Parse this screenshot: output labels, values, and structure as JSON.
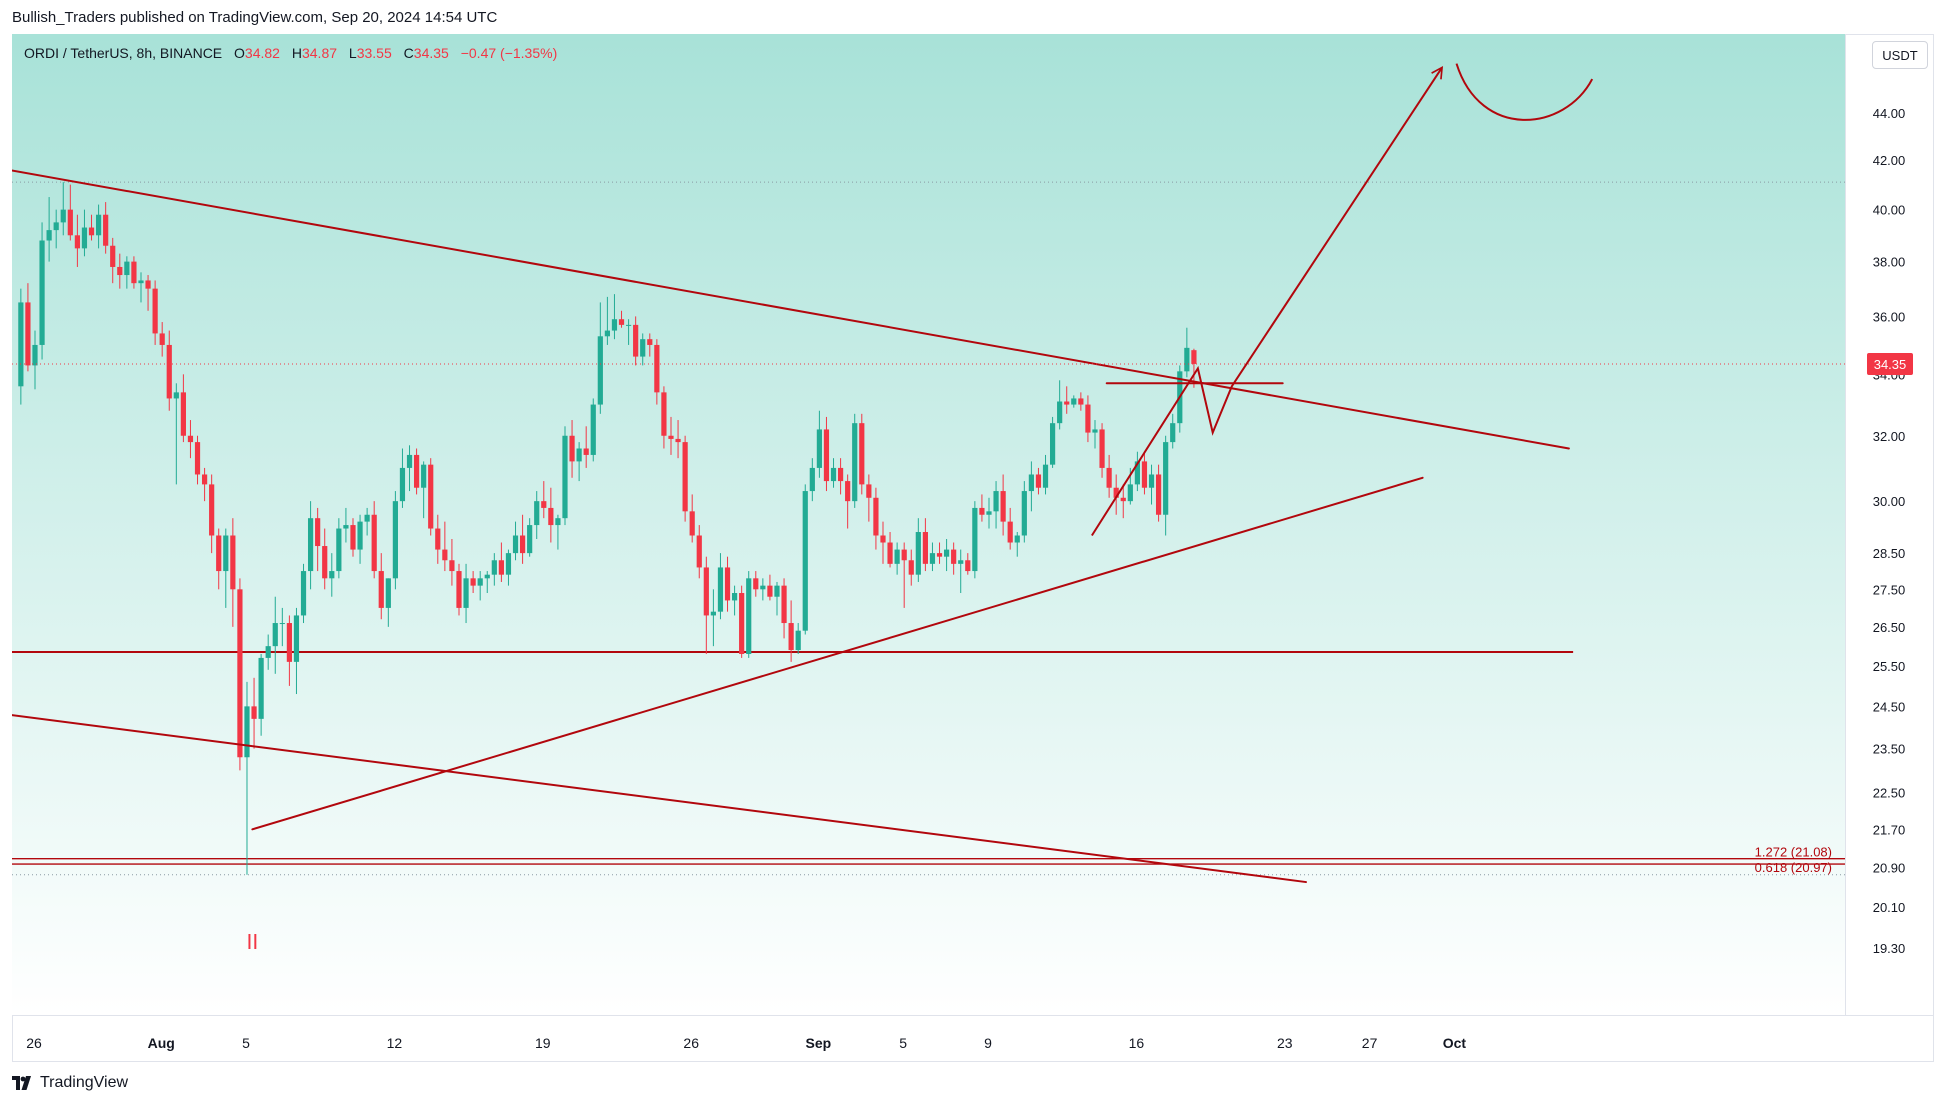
{
  "header": {
    "publisher_line": "Bullish_Traders published on TradingView.com, Sep 20, 2024 14:54 UTC"
  },
  "legend": {
    "symbol": "ORDI / TetherUS, 8h, BINANCE",
    "open_label": "O",
    "open": "34.82",
    "high_label": "H",
    "high": "34.87",
    "low_label": "L",
    "low": "33.55",
    "close_label": "C",
    "close": "34.35",
    "change": "−0.47 (−1.35%)"
  },
  "price_unit": "USDT",
  "footer": {
    "brand": "TradingView"
  },
  "colors": {
    "up": "#22ab94",
    "down": "#f23645",
    "drawing": "#b2070d",
    "bg_top": "#a8e2d8",
    "bg_bottom": "#ffffff",
    "last_price_bg": "#f23645"
  },
  "chart_data": {
    "type": "candlestick",
    "symbol": "ORDI/USDT",
    "interval": "8h",
    "exchange": "BINANCE",
    "y_axis": {
      "scale": "log",
      "range": [
        18.4,
        47.5
      ],
      "tick_labels": [
        "44.00",
        "42.00",
        "40.00",
        "38.00",
        "36.00",
        "34.00",
        "32.00",
        "30.00",
        "28.50",
        "27.50",
        "26.50",
        "25.50",
        "24.50",
        "23.50",
        "22.50",
        "21.70",
        "20.90",
        "20.10",
        "19.30"
      ]
    },
    "x_axis": {
      "range_days": [
        0,
        67
      ],
      "ticks": [
        {
          "day": 0,
          "label": "26"
        },
        {
          "day": 6,
          "label": "Aug"
        },
        {
          "day": 10,
          "label": "5"
        },
        {
          "day": 17,
          "label": "12"
        },
        {
          "day": 24,
          "label": "19"
        },
        {
          "day": 31,
          "label": "26"
        },
        {
          "day": 37,
          "label": "Sep"
        },
        {
          "day": 41,
          "label": "5"
        },
        {
          "day": 45,
          "label": "9"
        },
        {
          "day": 52,
          "label": "16"
        },
        {
          "day": 59,
          "label": "23"
        },
        {
          "day": 63,
          "label": "27"
        },
        {
          "day": 67,
          "label": "Oct"
        }
      ]
    },
    "last_price": {
      "value": 34.35,
      "label": "34.35"
    },
    "fib_labels": [
      {
        "text": "1.272 (21.08)",
        "price": 21.08
      },
      {
        "text": "0.618 (20.97)",
        "price": 20.97
      }
    ],
    "horizontal_levels": [
      {
        "price": 41.1,
        "style": "dotted"
      },
      {
        "price": 20.75,
        "style": "dotted"
      },
      {
        "price": 25.85,
        "style": "solid",
        "from_day": -1.2,
        "to_day": 72.6
      }
    ],
    "trendlines": [
      {
        "name": "descending-resistance",
        "from": [
          -1.2,
          41.6
        ],
        "to": [
          72.4,
          31.6
        ]
      },
      {
        "name": "lower-channel",
        "from": [
          -1.2,
          24.3
        ],
        "to": [
          60.0,
          20.6
        ]
      },
      {
        "name": "rising-support",
        "from": [
          10.3,
          21.7
        ],
        "to": [
          65.5,
          30.7
        ]
      },
      {
        "name": "breakout-retest-level",
        "from": [
          50.6,
          33.7
        ],
        "to": [
          58.9,
          33.7
        ]
      }
    ],
    "zigzag": [
      [
        49.9,
        29.0
      ],
      [
        54.9,
        34.2
      ],
      [
        55.6,
        32.1
      ],
      [
        56.5,
        33.6
      ],
      [
        66.4,
        46.0
      ]
    ],
    "target_arc": {
      "from": [
        67.1,
        46.2
      ],
      "dip": [
        70.3,
        43.7
      ],
      "to": [
        73.5,
        45.5
      ]
    },
    "marker_label": "II",
    "candles": [
      {
        "o": 33.6,
        "h": 37.0,
        "l": 33.0,
        "c": 36.5
      },
      {
        "o": 36.5,
        "h": 37.2,
        "l": 34.1,
        "c": 34.3
      },
      {
        "o": 34.3,
        "h": 35.5,
        "l": 33.5,
        "c": 35.0
      },
      {
        "o": 35.0,
        "h": 39.5,
        "l": 34.5,
        "c": 38.8
      },
      {
        "o": 38.8,
        "h": 40.5,
        "l": 38.0,
        "c": 39.2
      },
      {
        "o": 39.2,
        "h": 40.0,
        "l": 38.5,
        "c": 39.5
      },
      {
        "o": 39.5,
        "h": 41.1,
        "l": 39.0,
        "c": 40.0
      },
      {
        "o": 40.0,
        "h": 41.0,
        "l": 38.8,
        "c": 39.0
      },
      {
        "o": 39.0,
        "h": 39.8,
        "l": 37.8,
        "c": 38.5
      },
      {
        "o": 38.5,
        "h": 40.0,
        "l": 38.2,
        "c": 39.3
      },
      {
        "o": 39.3,
        "h": 39.8,
        "l": 38.8,
        "c": 39.0
      },
      {
        "o": 39.0,
        "h": 40.2,
        "l": 38.5,
        "c": 39.8
      },
      {
        "o": 39.8,
        "h": 40.3,
        "l": 38.3,
        "c": 38.6
      },
      {
        "o": 38.6,
        "h": 38.9,
        "l": 37.2,
        "c": 37.8
      },
      {
        "o": 37.8,
        "h": 38.3,
        "l": 37.0,
        "c": 37.5
      },
      {
        "o": 37.5,
        "h": 38.2,
        "l": 37.0,
        "c": 38.0
      },
      {
        "o": 38.0,
        "h": 38.2,
        "l": 37.0,
        "c": 37.2
      },
      {
        "o": 37.2,
        "h": 37.6,
        "l": 36.5,
        "c": 37.3
      },
      {
        "o": 37.3,
        "h": 37.5,
        "l": 36.2,
        "c": 37.0
      },
      {
        "o": 37.0,
        "h": 37.3,
        "l": 35.0,
        "c": 35.4
      },
      {
        "o": 35.4,
        "h": 35.8,
        "l": 34.6,
        "c": 35.0
      },
      {
        "o": 35.0,
        "h": 35.5,
        "l": 32.8,
        "c": 33.2
      },
      {
        "o": 33.2,
        "h": 33.7,
        "l": 30.5,
        "c": 33.4
      },
      {
        "o": 33.4,
        "h": 34.0,
        "l": 31.8,
        "c": 32.0
      },
      {
        "o": 32.0,
        "h": 32.5,
        "l": 31.3,
        "c": 31.8
      },
      {
        "o": 31.8,
        "h": 32.0,
        "l": 30.5,
        "c": 30.8
      },
      {
        "o": 30.8,
        "h": 31.0,
        "l": 30.0,
        "c": 30.5
      },
      {
        "o": 30.5,
        "h": 30.8,
        "l": 28.5,
        "c": 29.0
      },
      {
        "o": 29.0,
        "h": 29.2,
        "l": 27.5,
        "c": 28.0
      },
      {
        "o": 28.0,
        "h": 29.2,
        "l": 27.0,
        "c": 29.0
      },
      {
        "o": 29.0,
        "h": 29.5,
        "l": 26.5,
        "c": 27.5
      },
      {
        "o": 27.5,
        "h": 27.8,
        "l": 23.0,
        "c": 23.3
      },
      {
        "o": 23.3,
        "h": 25.1,
        "l": 20.75,
        "c": 24.5
      },
      {
        "o": 24.5,
        "h": 25.2,
        "l": 23.5,
        "c": 24.2
      },
      {
        "o": 24.2,
        "h": 25.8,
        "l": 23.8,
        "c": 25.7
      },
      {
        "o": 25.7,
        "h": 26.3,
        "l": 25.4,
        "c": 26.0
      },
      {
        "o": 26.0,
        "h": 27.3,
        "l": 25.3,
        "c": 26.6
      },
      {
        "o": 26.6,
        "h": 27.0,
        "l": 26.0,
        "c": 26.6
      },
      {
        "o": 26.6,
        "h": 26.8,
        "l": 25.0,
        "c": 25.6
      },
      {
        "o": 25.6,
        "h": 27.0,
        "l": 24.8,
        "c": 26.8
      },
      {
        "o": 26.8,
        "h": 28.2,
        "l": 26.6,
        "c": 28.0
      },
      {
        "o": 28.0,
        "h": 30.0,
        "l": 27.5,
        "c": 29.5
      },
      {
        "o": 29.5,
        "h": 29.8,
        "l": 28.0,
        "c": 28.7
      },
      {
        "o": 28.7,
        "h": 29.2,
        "l": 27.5,
        "c": 27.8
      },
      {
        "o": 27.8,
        "h": 28.5,
        "l": 27.3,
        "c": 28.0
      },
      {
        "o": 28.0,
        "h": 29.5,
        "l": 27.8,
        "c": 29.2
      },
      {
        "o": 29.2,
        "h": 29.8,
        "l": 28.8,
        "c": 29.3
      },
      {
        "o": 29.3,
        "h": 29.5,
        "l": 28.4,
        "c": 28.6
      },
      {
        "o": 28.6,
        "h": 29.6,
        "l": 28.2,
        "c": 29.4
      },
      {
        "o": 29.4,
        "h": 29.8,
        "l": 29.0,
        "c": 29.6
      },
      {
        "o": 29.6,
        "h": 30.0,
        "l": 27.8,
        "c": 28.0
      },
      {
        "o": 28.0,
        "h": 28.5,
        "l": 26.7,
        "c": 27.0
      },
      {
        "o": 27.0,
        "h": 27.8,
        "l": 26.5,
        "c": 27.8
      },
      {
        "o": 27.8,
        "h": 30.3,
        "l": 27.5,
        "c": 30.0
      },
      {
        "o": 30.0,
        "h": 31.6,
        "l": 29.8,
        "c": 31.0
      },
      {
        "o": 31.0,
        "h": 31.7,
        "l": 30.3,
        "c": 31.4
      },
      {
        "o": 31.4,
        "h": 31.6,
        "l": 30.2,
        "c": 30.4
      },
      {
        "o": 30.4,
        "h": 31.2,
        "l": 29.5,
        "c": 31.1
      },
      {
        "o": 31.1,
        "h": 31.3,
        "l": 29.0,
        "c": 29.2
      },
      {
        "o": 29.2,
        "h": 29.6,
        "l": 28.2,
        "c": 28.6
      },
      {
        "o": 28.6,
        "h": 29.4,
        "l": 28.0,
        "c": 28.3
      },
      {
        "o": 28.3,
        "h": 28.9,
        "l": 27.6,
        "c": 28.0
      },
      {
        "o": 28.0,
        "h": 28.2,
        "l": 26.8,
        "c": 27.0
      },
      {
        "o": 27.0,
        "h": 28.2,
        "l": 26.6,
        "c": 27.8
      },
      {
        "o": 27.8,
        "h": 28.0,
        "l": 27.4,
        "c": 27.6
      },
      {
        "o": 27.6,
        "h": 28.0,
        "l": 27.2,
        "c": 27.8
      },
      {
        "o": 27.8,
        "h": 28.0,
        "l": 27.4,
        "c": 27.9
      },
      {
        "o": 27.9,
        "h": 28.5,
        "l": 27.6,
        "c": 28.3
      },
      {
        "o": 28.3,
        "h": 28.8,
        "l": 27.7,
        "c": 27.9
      },
      {
        "o": 27.9,
        "h": 28.6,
        "l": 27.6,
        "c": 28.5
      },
      {
        "o": 28.5,
        "h": 29.4,
        "l": 28.3,
        "c": 29.0
      },
      {
        "o": 29.0,
        "h": 29.6,
        "l": 28.2,
        "c": 28.5
      },
      {
        "o": 28.5,
        "h": 29.5,
        "l": 28.4,
        "c": 29.3
      },
      {
        "o": 29.3,
        "h": 30.3,
        "l": 28.9,
        "c": 30.0
      },
      {
        "o": 30.0,
        "h": 30.6,
        "l": 29.5,
        "c": 29.8
      },
      {
        "o": 29.8,
        "h": 30.4,
        "l": 28.8,
        "c": 29.3
      },
      {
        "o": 29.3,
        "h": 29.6,
        "l": 28.6,
        "c": 29.5
      },
      {
        "o": 29.5,
        "h": 32.3,
        "l": 29.3,
        "c": 32.0
      },
      {
        "o": 32.0,
        "h": 32.5,
        "l": 30.7,
        "c": 31.2
      },
      {
        "o": 31.2,
        "h": 31.8,
        "l": 30.6,
        "c": 31.6
      },
      {
        "o": 31.6,
        "h": 32.3,
        "l": 31.0,
        "c": 31.4
      },
      {
        "o": 31.4,
        "h": 33.2,
        "l": 31.2,
        "c": 33.0
      },
      {
        "o": 33.0,
        "h": 36.5,
        "l": 32.7,
        "c": 35.3
      },
      {
        "o": 35.3,
        "h": 36.7,
        "l": 35.0,
        "c": 35.5
      },
      {
        "o": 35.5,
        "h": 36.8,
        "l": 35.2,
        "c": 35.9
      },
      {
        "o": 35.9,
        "h": 36.2,
        "l": 35.6,
        "c": 35.7
      },
      {
        "o": 35.7,
        "h": 35.9,
        "l": 35.0,
        "c": 35.7
      },
      {
        "o": 35.7,
        "h": 36.0,
        "l": 34.3,
        "c": 34.6
      },
      {
        "o": 34.6,
        "h": 35.4,
        "l": 34.3,
        "c": 35.2
      },
      {
        "o": 35.2,
        "h": 35.4,
        "l": 34.6,
        "c": 35.0
      },
      {
        "o": 35.0,
        "h": 35.2,
        "l": 33.0,
        "c": 33.4
      },
      {
        "o": 33.4,
        "h": 33.6,
        "l": 31.6,
        "c": 32.0
      },
      {
        "o": 32.0,
        "h": 32.6,
        "l": 31.4,
        "c": 31.9
      },
      {
        "o": 31.9,
        "h": 32.5,
        "l": 31.3,
        "c": 31.8
      },
      {
        "o": 31.8,
        "h": 32.0,
        "l": 29.4,
        "c": 29.7
      },
      {
        "o": 29.7,
        "h": 30.2,
        "l": 28.8,
        "c": 29.0
      },
      {
        "o": 29.0,
        "h": 29.3,
        "l": 27.8,
        "c": 28.1
      },
      {
        "o": 28.1,
        "h": 28.4,
        "l": 25.8,
        "c": 26.8
      },
      {
        "o": 26.8,
        "h": 27.5,
        "l": 26.0,
        "c": 26.9
      },
      {
        "o": 26.9,
        "h": 28.5,
        "l": 26.7,
        "c": 28.1
      },
      {
        "o": 28.1,
        "h": 28.4,
        "l": 26.9,
        "c": 27.2
      },
      {
        "o": 27.2,
        "h": 27.6,
        "l": 26.8,
        "c": 27.4
      },
      {
        "o": 27.4,
        "h": 27.6,
        "l": 25.7,
        "c": 25.8
      },
      {
        "o": 25.8,
        "h": 28.0,
        "l": 25.7,
        "c": 27.8
      },
      {
        "o": 27.8,
        "h": 28.0,
        "l": 27.3,
        "c": 27.5
      },
      {
        "o": 27.5,
        "h": 27.8,
        "l": 27.2,
        "c": 27.6
      },
      {
        "o": 27.6,
        "h": 27.9,
        "l": 27.2,
        "c": 27.3
      },
      {
        "o": 27.3,
        "h": 27.7,
        "l": 26.8,
        "c": 27.6
      },
      {
        "o": 27.6,
        "h": 27.8,
        "l": 26.2,
        "c": 26.6
      },
      {
        "o": 26.6,
        "h": 27.2,
        "l": 25.6,
        "c": 25.9
      },
      {
        "o": 25.9,
        "h": 26.6,
        "l": 25.8,
        "c": 26.4
      },
      {
        "o": 26.4,
        "h": 30.5,
        "l": 26.3,
        "c": 30.3
      },
      {
        "o": 30.3,
        "h": 31.3,
        "l": 30.0,
        "c": 31.0
      },
      {
        "o": 31.0,
        "h": 32.8,
        "l": 30.7,
        "c": 32.2
      },
      {
        "o": 32.2,
        "h": 32.6,
        "l": 30.3,
        "c": 30.6
      },
      {
        "o": 30.6,
        "h": 31.3,
        "l": 30.4,
        "c": 31.0
      },
      {
        "o": 31.0,
        "h": 31.3,
        "l": 30.2,
        "c": 30.6
      },
      {
        "o": 30.6,
        "h": 30.8,
        "l": 29.2,
        "c": 30.0
      },
      {
        "o": 30.0,
        "h": 32.7,
        "l": 29.8,
        "c": 32.4
      },
      {
        "o": 32.4,
        "h": 32.7,
        "l": 30.2,
        "c": 30.5
      },
      {
        "o": 30.5,
        "h": 30.8,
        "l": 29.4,
        "c": 30.1
      },
      {
        "o": 30.1,
        "h": 30.4,
        "l": 28.6,
        "c": 29.0
      },
      {
        "o": 29.0,
        "h": 29.4,
        "l": 28.2,
        "c": 28.8
      },
      {
        "o": 28.8,
        "h": 29.1,
        "l": 28.1,
        "c": 28.2
      },
      {
        "o": 28.2,
        "h": 28.8,
        "l": 27.9,
        "c": 28.6
      },
      {
        "o": 28.6,
        "h": 28.8,
        "l": 27.0,
        "c": 28.3
      },
      {
        "o": 28.3,
        "h": 28.6,
        "l": 27.6,
        "c": 27.9
      },
      {
        "o": 27.9,
        "h": 29.5,
        "l": 27.7,
        "c": 29.1
      },
      {
        "o": 29.1,
        "h": 29.5,
        "l": 28.0,
        "c": 28.2
      },
      {
        "o": 28.2,
        "h": 28.8,
        "l": 28.0,
        "c": 28.5
      },
      {
        "o": 28.5,
        "h": 28.8,
        "l": 28.2,
        "c": 28.4
      },
      {
        "o": 28.4,
        "h": 28.9,
        "l": 28.0,
        "c": 28.6
      },
      {
        "o": 28.6,
        "h": 28.8,
        "l": 27.9,
        "c": 28.2
      },
      {
        "o": 28.2,
        "h": 28.6,
        "l": 27.4,
        "c": 28.3
      },
      {
        "o": 28.3,
        "h": 28.5,
        "l": 27.9,
        "c": 28.0
      },
      {
        "o": 28.0,
        "h": 30.0,
        "l": 27.8,
        "c": 29.8
      },
      {
        "o": 29.8,
        "h": 30.2,
        "l": 29.4,
        "c": 29.6
      },
      {
        "o": 29.6,
        "h": 30.1,
        "l": 29.2,
        "c": 29.7
      },
      {
        "o": 29.7,
        "h": 30.6,
        "l": 29.2,
        "c": 30.3
      },
      {
        "o": 30.3,
        "h": 30.8,
        "l": 29.0,
        "c": 29.4
      },
      {
        "o": 29.4,
        "h": 29.8,
        "l": 28.6,
        "c": 28.8
      },
      {
        "o": 28.8,
        "h": 29.1,
        "l": 28.4,
        "c": 29.0
      },
      {
        "o": 29.0,
        "h": 30.6,
        "l": 28.8,
        "c": 30.3
      },
      {
        "o": 30.3,
        "h": 31.2,
        "l": 29.7,
        "c": 30.8
      },
      {
        "o": 30.8,
        "h": 31.0,
        "l": 30.2,
        "c": 30.4
      },
      {
        "o": 30.4,
        "h": 31.4,
        "l": 30.2,
        "c": 31.1
      },
      {
        "o": 31.1,
        "h": 32.6,
        "l": 31.0,
        "c": 32.4
      },
      {
        "o": 32.4,
        "h": 33.8,
        "l": 32.2,
        "c": 33.1
      },
      {
        "o": 33.1,
        "h": 33.6,
        "l": 32.7,
        "c": 33.0
      },
      {
        "o": 33.0,
        "h": 33.3,
        "l": 32.9,
        "c": 33.2
      },
      {
        "o": 33.2,
        "h": 33.4,
        "l": 32.8,
        "c": 33.0
      },
      {
        "o": 33.0,
        "h": 33.3,
        "l": 31.8,
        "c": 32.1
      },
      {
        "o": 32.1,
        "h": 32.5,
        "l": 31.6,
        "c": 32.2
      },
      {
        "o": 32.2,
        "h": 32.4,
        "l": 30.7,
        "c": 31.0
      },
      {
        "o": 31.0,
        "h": 31.4,
        "l": 30.1,
        "c": 30.4
      },
      {
        "o": 30.4,
        "h": 30.8,
        "l": 29.6,
        "c": 30.1
      },
      {
        "o": 30.1,
        "h": 30.5,
        "l": 29.5,
        "c": 30.0
      },
      {
        "o": 30.0,
        "h": 31.0,
        "l": 29.9,
        "c": 30.5
      },
      {
        "o": 30.5,
        "h": 31.5,
        "l": 30.3,
        "c": 31.2
      },
      {
        "o": 31.2,
        "h": 31.5,
        "l": 30.2,
        "c": 30.4
      },
      {
        "o": 30.4,
        "h": 31.1,
        "l": 29.9,
        "c": 30.8
      },
      {
        "o": 30.8,
        "h": 31.1,
        "l": 29.4,
        "c": 29.6
      },
      {
        "o": 29.6,
        "h": 32.0,
        "l": 29.0,
        "c": 31.8
      },
      {
        "o": 31.8,
        "h": 32.7,
        "l": 31.6,
        "c": 32.4
      },
      {
        "o": 32.4,
        "h": 34.3,
        "l": 32.1,
        "c": 34.1
      },
      {
        "o": 34.1,
        "h": 35.6,
        "l": 33.9,
        "c": 34.9
      },
      {
        "o": 34.82,
        "h": 34.87,
        "l": 33.55,
        "c": 34.35
      }
    ]
  }
}
